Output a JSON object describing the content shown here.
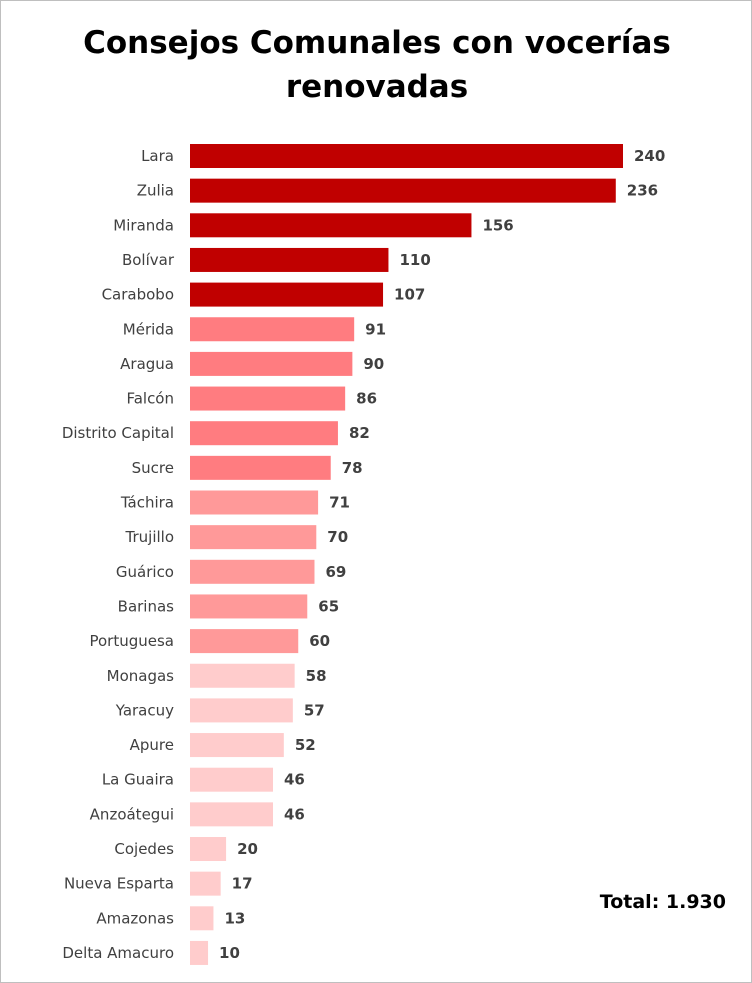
{
  "chart_data": {
    "type": "bar",
    "orientation": "horizontal",
    "title": "Consejos Comunales con vocerías renovadas",
    "categories": [
      "Lara",
      "Zulia",
      "Miranda",
      "Bolívar",
      "Carabobo",
      "Mérida",
      "Aragua",
      "Falcón",
      "Distrito Capital",
      "Sucre",
      "Táchira",
      "Trujillo",
      "Guárico",
      "Barinas",
      "Portuguesa",
      "Monagas",
      "Yaracuy",
      "Apure",
      "La Guaira",
      "Anzoátegui",
      "Cojedes",
      "Nueva Esparta",
      "Amazonas",
      "Delta Amacuro"
    ],
    "values": [
      240,
      236,
      156,
      110,
      107,
      91,
      90,
      86,
      82,
      78,
      71,
      70,
      69,
      65,
      60,
      58,
      57,
      52,
      46,
      46,
      20,
      17,
      13,
      10
    ],
    "colors": [
      "#c00000",
      "#c00000",
      "#c00000",
      "#c00000",
      "#c00000",
      "#ff7c80",
      "#ff7c80",
      "#ff7c80",
      "#ff7c80",
      "#ff7c80",
      "#ff9999",
      "#ff9999",
      "#ff9999",
      "#ff9999",
      "#ff9999",
      "#ffcccc",
      "#ffcccc",
      "#ffcccc",
      "#ffcccc",
      "#ffcccc",
      "#ffcccc",
      "#ffcccc",
      "#ffcccc",
      "#ffcccc"
    ],
    "xlim": [
      0,
      240
    ],
    "grid": false,
    "data_labels": true
  },
  "total_label": "Total: 1.930"
}
